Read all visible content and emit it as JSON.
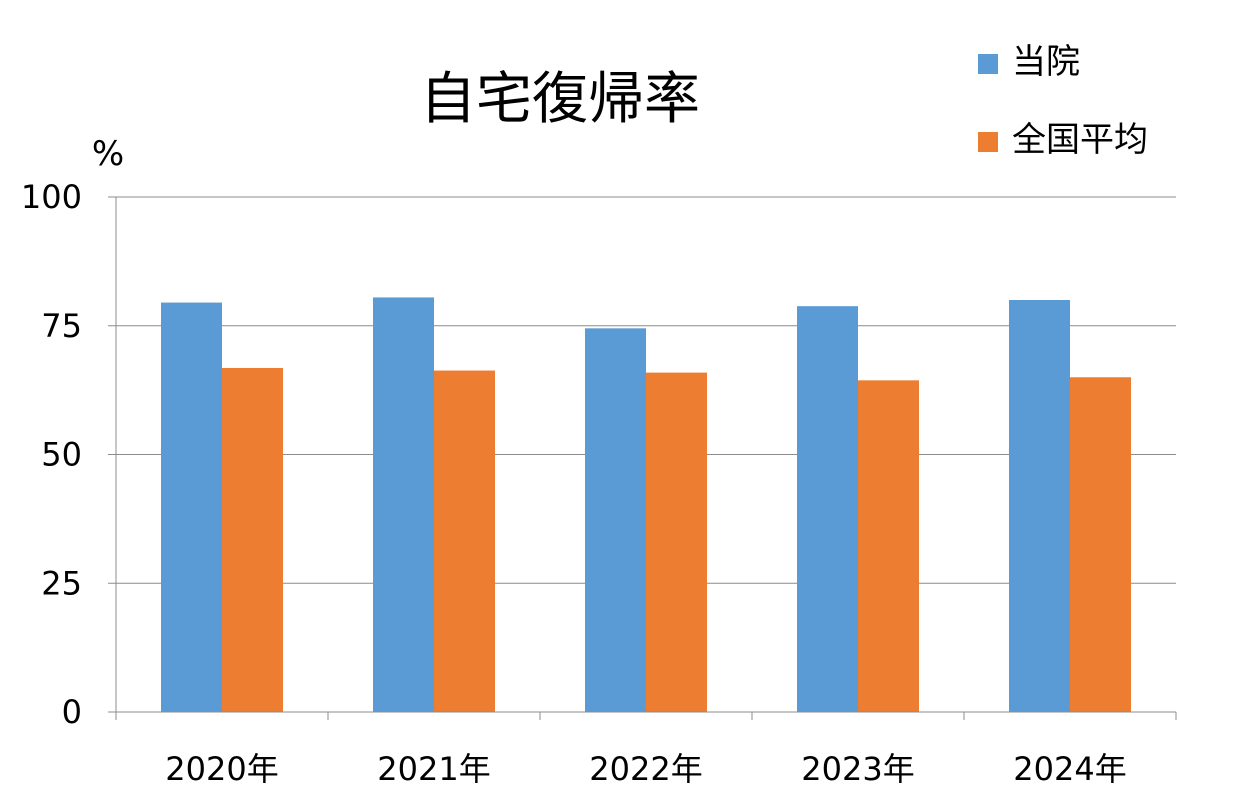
{
  "chart_data": {
    "type": "bar",
    "title": "自宅復帰率",
    "ylabel": "%",
    "ylim": [
      0,
      100
    ],
    "yticks": [
      0,
      25,
      50,
      75,
      100
    ],
    "grid": true,
    "legend_position": "top-right",
    "categories": [
      "2020年",
      "2021年",
      "2022年",
      "2023年",
      "2024年"
    ],
    "series": [
      {
        "name": "当院",
        "color": "#5B9BD5",
        "values": [
          79.5,
          80.5,
          74.5,
          78.8,
          80.0
        ]
      },
      {
        "name": "全国平均",
        "color": "#ED7D31",
        "values": [
          66.8,
          66.3,
          65.9,
          64.4,
          65.0
        ]
      }
    ]
  }
}
